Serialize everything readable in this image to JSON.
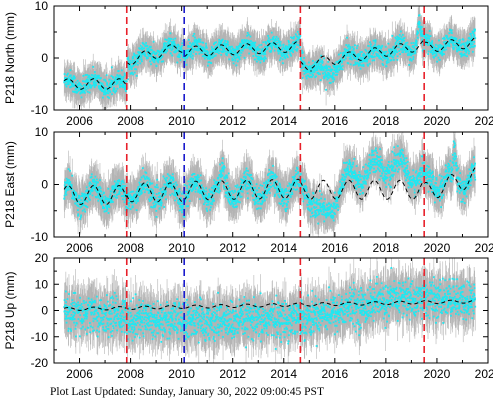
{
  "footer": {
    "label": "Plot Last Updated:",
    "timestamp": "Sunday, January 30, 2022 09:00:45 PST"
  },
  "colors": {
    "data": "#1fe8f2",
    "error_bars": "#b4b4b4",
    "model": "#000000",
    "event_red": "#e8202a",
    "event_blue": "#1a1acc"
  },
  "chart_data": [
    {
      "type": "scatter",
      "ylabel": "P218 North (mm)",
      "xlim": [
        2005.0,
        2022.0
      ],
      "ylim": [
        -10,
        10
      ],
      "yticks": [
        -10,
        0,
        10
      ],
      "xticks": [
        2006,
        2008,
        2010,
        2012,
        2014,
        2016,
        2018,
        2020,
        2022
      ],
      "grid": false,
      "offsets": [
        {
          "x": 2007.85,
          "color": "red"
        },
        {
          "x": 2010.1,
          "color": "blue"
        },
        {
          "x": 2014.65,
          "color": "red"
        },
        {
          "x": 2019.5,
          "color": "red"
        }
      ],
      "trend": {
        "segments": [
          {
            "x": [
              2005.4,
              2007.85
            ],
            "y": [
              -5.0,
              -5.0
            ]
          },
          {
            "x": [
              2007.85,
              2010.1
            ],
            "y": [
              -0.5,
              2.2
            ]
          },
          {
            "x": [
              2010.1,
              2014.65
            ],
            "y": [
              1.2,
              2.2
            ]
          },
          {
            "x": [
              2014.65,
              2015.1
            ],
            "y": [
              -1.5,
              -1.5
            ]
          },
          {
            "x": [
              2015.1,
              2019.5
            ],
            "y": [
              -1.0,
              2.5
            ]
          },
          {
            "x": [
              2019.5,
              2021.5
            ],
            "y": [
              2.0,
              3.0
            ]
          }
        ],
        "seasonal_amp": 1.0
      },
      "transients": [
        {
          "x": 2015.7,
          "dy": -3.0,
          "width": 0.25
        },
        {
          "x": 2019.3,
          "dy": 4.5,
          "width": 0.06
        }
      ],
      "scatter": 0.9,
      "error_bar": 2.5
    },
    {
      "type": "scatter",
      "ylabel": "P218 East (mm)",
      "xlim": [
        2005.0,
        2022.0
      ],
      "ylim": [
        -10,
        10
      ],
      "yticks": [
        -10,
        0,
        10
      ],
      "xticks": [
        2006,
        2008,
        2010,
        2012,
        2014,
        2016,
        2018,
        2020,
        2022
      ],
      "grid": false,
      "offsets": [
        {
          "x": 2007.85,
          "color": "red"
        },
        {
          "x": 2010.1,
          "color": "blue"
        },
        {
          "x": 2014.65,
          "color": "red"
        },
        {
          "x": 2019.5,
          "color": "red"
        }
      ],
      "trend": {
        "segments": [
          {
            "x": [
              2005.4,
              2007.85
            ],
            "y": [
              -2.0,
              -2.0
            ]
          },
          {
            "x": [
              2007.85,
              2010.1
            ],
            "y": [
              -1.5,
              -1.5
            ]
          },
          {
            "x": [
              2010.1,
              2014.65
            ],
            "y": [
              -1.2,
              -0.8
            ]
          },
          {
            "x": [
              2014.65,
              2019.5
            ],
            "y": [
              -1.0,
              -1.0
            ]
          },
          {
            "x": [
              2019.5,
              2021.5
            ],
            "y": [
              -1.5,
              1.5
            ]
          }
        ],
        "seasonal_amp": 1.8
      },
      "transients": [
        {
          "x": 2015.6,
          "dy": -6.0,
          "width": 0.3
        },
        {
          "x": 2018.0,
          "dy": 4.5,
          "width": 1.2
        },
        {
          "x": 2011.6,
          "dy": 3.0,
          "width": 0.05
        },
        {
          "x": 2020.7,
          "dy": 4.5,
          "width": 0.05
        }
      ],
      "scatter": 1.1,
      "error_bar": 3.0
    },
    {
      "type": "scatter",
      "ylabel": "P218 Up (mm)",
      "xlim": [
        2005.0,
        2022.0
      ],
      "ylim": [
        -20,
        20
      ],
      "yticks": [
        -20,
        -10,
        0,
        10,
        20
      ],
      "xticks": [
        2006,
        2008,
        2010,
        2012,
        2014,
        2016,
        2018,
        2020,
        2022
      ],
      "grid": false,
      "offsets": [
        {
          "x": 2007.85,
          "color": "red"
        },
        {
          "x": 2010.1,
          "color": "blue"
        },
        {
          "x": 2014.65,
          "color": "red"
        },
        {
          "x": 2019.5,
          "color": "red"
        }
      ],
      "trend": {
        "segments": [
          {
            "x": [
              2005.4,
              2021.5
            ],
            "y": [
              0.5,
              3.5
            ]
          }
        ],
        "seasonal_amp": 0.6
      },
      "transients": [
        {
          "x": 2012.0,
          "dy": -6.0,
          "width": 4.0
        },
        {
          "x": 2018.5,
          "dy": 3.0,
          "width": 1.5
        }
      ],
      "scatter": 3.5,
      "error_bar": 7.0
    }
  ]
}
